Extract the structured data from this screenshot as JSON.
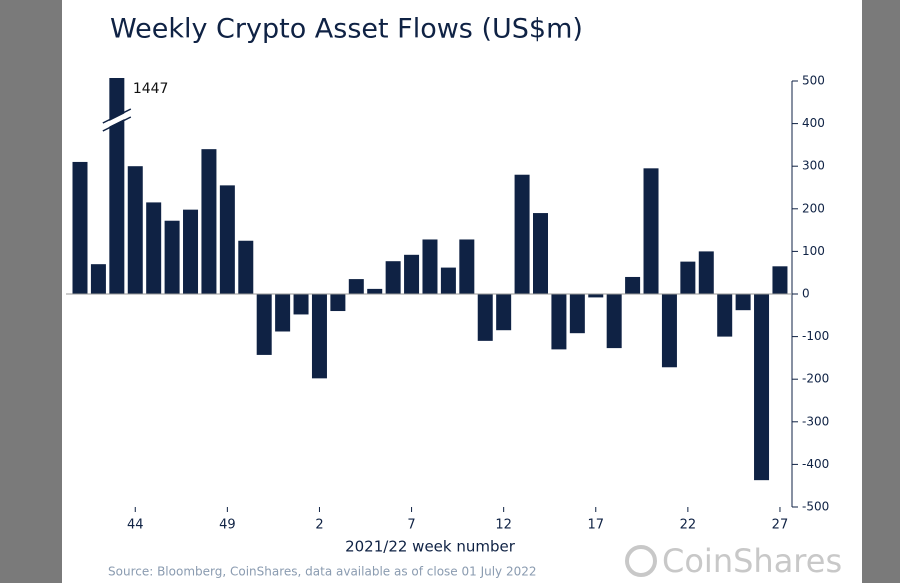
{
  "chart_data": {
    "type": "bar",
    "title": "Weekly Crypto Asset Flows (US$m)",
    "x_label": "2021/22 week number",
    "source": "Source: Bloomberg, CoinShares, data available as of close 01 July 2022",
    "brand": "CoinShares",
    "color": "#0f2244",
    "categories": [
      null,
      null,
      null,
      "44",
      null,
      null,
      null,
      null,
      "49",
      null,
      null,
      null,
      null,
      "2",
      null,
      null,
      null,
      null,
      "7",
      null,
      null,
      null,
      null,
      "12",
      null,
      null,
      null,
      null,
      "17",
      null,
      null,
      null,
      null,
      "22",
      null,
      null,
      null,
      null,
      "27"
    ],
    "values": [
      310,
      70,
      1447,
      300,
      215,
      172,
      198,
      340,
      255,
      125,
      -143,
      -88,
      -48,
      -198,
      -40,
      35,
      12,
      77,
      92,
      128,
      62,
      128,
      -110,
      -85,
      280,
      190,
      -130,
      -92,
      -8,
      -127,
      40,
      295,
      -172,
      76,
      100,
      -100,
      -38,
      -437,
      65
    ],
    "ylim": [
      -500,
      500
    ],
    "yticks": [
      -500,
      -400,
      -300,
      -200,
      -100,
      0,
      100,
      200,
      300,
      400,
      500
    ],
    "axis_side": "right"
  }
}
